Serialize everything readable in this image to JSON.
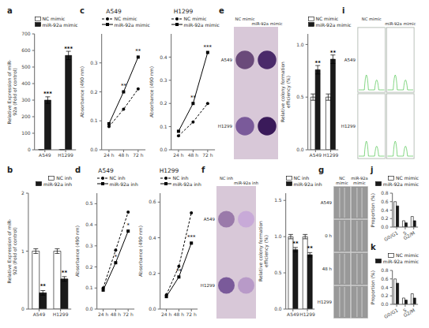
{
  "chart_data": [
    {
      "type": "bar",
      "label": "a",
      "ylabel": "Relative Expression of miR-\n92a (Fold of control)",
      "categories": [
        "A549",
        "H1299"
      ],
      "series": [
        {
          "name": "NC mimic",
          "color": "#ffffff",
          "values": [
            1.0,
            1.0
          ],
          "errors": [
            0.05,
            0.05
          ]
        },
        {
          "name": "miR-92a mimic",
          "color": "#1a1a1a",
          "values": [
            300,
            570
          ],
          "errors": [
            20,
            25
          ]
        }
      ],
      "ylim": [
        0,
        700
      ],
      "yticks": [
        0,
        100,
        200,
        300,
        400,
        500,
        600,
        700
      ],
      "legend": "upper left",
      "annotations": [
        {
          "text": "***",
          "x": "A549",
          "series": "miR-92a mimic"
        },
        {
          "text": "***",
          "x": "H1299",
          "series": "miR-92a mimic"
        }
      ]
    },
    {
      "type": "line",
      "label": "c",
      "title": "A549",
      "ylabel": "Absorbance (490 nm)",
      "x": [
        24,
        48,
        72
      ],
      "series": [
        {
          "name": "NC mimic",
          "color": "#000000",
          "marker": "circle",
          "line_style": "dashed",
          "values": [
            0.08,
            0.14,
            0.21
          ]
        },
        {
          "name": "miR-92a mimic",
          "color": "#000000",
          "marker": "square",
          "line_style": "solid",
          "values": [
            0.09,
            0.2,
            0.32
          ]
        }
      ],
      "xlim": [
        12,
        84
      ],
      "xticks": [
        {
          "value": 24,
          "label": "24 h"
        },
        {
          "value": 48,
          "label": "48 h"
        },
        {
          "value": 72,
          "label": "72 h"
        }
      ],
      "ylim": [
        0.0,
        0.4
      ],
      "yticks": [
        {
          "value": 0,
          "label": "0.0"
        },
        0.1,
        0.2,
        0.3
      ],
      "legend": "upper left",
      "annotations": [
        {
          "text": "**",
          "x": 48,
          "series": "miR-92a mimic"
        },
        {
          "text": "**",
          "x": 72,
          "series": "miR-92a mimic"
        }
      ]
    },
    {
      "type": "line",
      "title": "H1299",
      "ylabel": "Absorbance (490 nm)",
      "x": [
        24,
        48,
        72
      ],
      "series": [
        {
          "name": "NC mimic",
          "color": "#000000",
          "marker": "circle",
          "line_style": "dashed",
          "values": [
            0.06,
            0.12,
            0.2
          ]
        },
        {
          "name": "miR-92a mimic",
          "color": "#000000",
          "marker": "square",
          "line_style": "solid",
          "values": [
            0.08,
            0.2,
            0.42
          ]
        }
      ],
      "xlim": [
        12,
        84
      ],
      "xticks": [
        {
          "value": 24,
          "label": "24 h"
        },
        {
          "value": 48,
          "label": "48 h"
        },
        {
          "value": 72,
          "label": "72 h"
        }
      ],
      "ylim": [
        0.0,
        0.5
      ],
      "yticks": [
        {
          "value": 0,
          "label": "0.0"
        },
        0.1,
        0.2,
        0.3,
        0.4
      ],
      "legend": "upper left",
      "annotations": [
        {
          "text": "**",
          "x": 48,
          "series": "miR-92a mimic"
        },
        {
          "text": "***",
          "x": 72,
          "series": "miR-92a mimic"
        }
      ]
    },
    {
      "type": "image",
      "label": "e",
      "categories": [
        "NC mimic",
        "miR-92a mimic"
      ],
      "annotations": [
        "A549",
        "H1299"
      ],
      "colors": [
        "#6a4a7a",
        "#4a2a6a",
        "#7a5a9a",
        "#3a1a5a"
      ]
    },
    {
      "type": "bar",
      "ylabel": "Relative colony formation\nefficiency (%)",
      "categories": [
        "A549",
        "H1299"
      ],
      "series": [
        {
          "name": "NC mimic",
          "color": "#ffffff",
          "values": [
            0.5,
            0.5
          ],
          "errors": [
            0.03,
            0.03
          ]
        },
        {
          "name": "miR-92a mimic",
          "color": "#1a1a1a",
          "values": [
            0.76,
            0.86
          ],
          "errors": [
            0.04,
            0.04
          ]
        }
      ],
      "ylim": [
        0.0,
        1.1
      ],
      "yticks": [
        {
          "value": 0,
          "label": "0.0"
        },
        0.5,
        {
          "value": 1,
          "label": "1.0"
        }
      ],
      "legend": "upper left",
      "annotations": [
        {
          "text": "**",
          "x": "A549",
          "series": "miR-92a mimic"
        },
        {
          "text": "**",
          "x": "H1299",
          "series": "miR-92a mimic"
        }
      ]
    },
    {
      "type": "image",
      "label": "i",
      "categories": [
        "NC mimic",
        "miR-92a mimic"
      ],
      "annotations": [
        "A549",
        "H1299"
      ],
      "color": "#00aa00"
    },
    {
      "type": "bar",
      "label": "b",
      "ylabel": "Relative Expression of miR-\n92a (Fold of control)",
      "categories": [
        "A549",
        "H1299"
      ],
      "series": [
        {
          "name": "NC inh",
          "color": "#ffffff",
          "values": [
            1.0,
            1.0
          ],
          "errors": [
            0.04,
            0.04
          ]
        },
        {
          "name": "miR-92a inh",
          "color": "#1a1a1a",
          "values": [
            0.28,
            0.52
          ],
          "errors": [
            0.04,
            0.04
          ]
        }
      ],
      "ylim": [
        0,
        2
      ],
      "yticks": [
        0,
        1,
        2
      ],
      "legend": "upper right",
      "annotations": [
        {
          "text": "**",
          "x": "A549",
          "series": "miR-92a inh"
        },
        {
          "text": "**",
          "x": "H1299",
          "series": "miR-92a inh"
        }
      ]
    },
    {
      "type": "line",
      "label": "d",
      "title": "A549",
      "ylabel": "Absorbance (490 nm)",
      "x": [
        24,
        48,
        72
      ],
      "series": [
        {
          "name": "NC inh",
          "color": "#000000",
          "marker": "circle",
          "line_style": "dashed",
          "values": [
            0.1,
            0.28,
            0.46
          ]
        },
        {
          "name": "miR-92a inh",
          "color": "#000000",
          "marker": "square",
          "line_style": "solid",
          "values": [
            0.09,
            0.22,
            0.37
          ]
        }
      ],
      "xlim": [
        12,
        84
      ],
      "xticks": [
        {
          "value": 24,
          "label": "24 h"
        },
        {
          "value": 48,
          "label": "48 h"
        },
        {
          "value": 72,
          "label": "72 h"
        }
      ],
      "ylim": [
        0.0,
        0.55
      ],
      "yticks": [
        {
          "value": 0,
          "label": "0.0"
        },
        0.1,
        0.2,
        0.3,
        0.4,
        0.5
      ],
      "legend": "upper left",
      "annotations": [
        {
          "text": "*",
          "x": 48,
          "series": "miR-92a inh"
        },
        {
          "text": "*",
          "x": 72,
          "series": "miR-92a inh"
        }
      ]
    },
    {
      "type": "line",
      "title": "H1299",
      "ylabel": "Absorbance (490 nm)",
      "x": [
        24,
        48,
        72
      ],
      "series": [
        {
          "name": "NC inh",
          "color": "#000000",
          "marker": "circle",
          "line_style": "dashed",
          "values": [
            0.08,
            0.24,
            0.54
          ]
        },
        {
          "name": "miR-92a inh",
          "color": "#000000",
          "marker": "square",
          "line_style": "solid",
          "values": [
            0.07,
            0.18,
            0.37
          ]
        }
      ],
      "xlim": [
        12,
        84
      ],
      "xticks": [
        {
          "value": 24,
          "label": "24 h"
        },
        {
          "value": 48,
          "label": "48 h"
        },
        {
          "value": 72,
          "label": "72 h"
        }
      ],
      "ylim": [
        0.0,
        0.65
      ],
      "yticks": [
        {
          "value": 0,
          "label": "0.0"
        },
        0.2,
        0.4,
        0.6
      ],
      "legend": "upper left",
      "annotations": [
        {
          "text": "**",
          "x": 48,
          "series": "miR-92a inh"
        },
        {
          "text": "***",
          "x": 72,
          "series": "miR-92a inh"
        }
      ]
    },
    {
      "type": "image",
      "label": "f",
      "categories": [
        "NC inh",
        "miR-92a inh"
      ],
      "annotations": [
        "A549",
        "H1299"
      ],
      "colors": [
        "#9a7aaa",
        "#c8aad8",
        "#7a5a9a",
        "#b89ac8"
      ]
    },
    {
      "type": "bar",
      "ylabel": "Relative colony formation\nefficiency (%)",
      "categories": [
        "A549",
        "H1299"
      ],
      "series": [
        {
          "name": "NC inh",
          "color": "#ffffff",
          "values": [
            1.0,
            1.0
          ],
          "errors": [
            0.03,
            0.03
          ]
        },
        {
          "name": "miR-92a inh",
          "color": "#1a1a1a",
          "values": [
            0.82,
            0.75
          ],
          "errors": [
            0.03,
            0.03
          ]
        }
      ],
      "ylim": [
        0.0,
        1.6
      ],
      "yticks": [
        {
          "value": 0,
          "label": "0.0"
        },
        0.5,
        {
          "value": 1,
          "label": "1.0"
        },
        1.5
      ],
      "legend": "upper left",
      "annotations": [
        {
          "text": "**",
          "x": "A549",
          "series": "miR-92a inh"
        },
        {
          "text": "**",
          "x": "H1299",
          "series": "miR-92a inh"
        }
      ]
    },
    {
      "type": "image",
      "label": "g",
      "categories": [
        "NC\nmimic",
        "miR-92a\nmimic"
      ],
      "annotations": [
        "A549",
        "0 h",
        "48 h",
        "H1299"
      ],
      "color": "#999999"
    },
    {
      "type": "bar",
      "label": "j",
      "ylabel": "Proportion (%)",
      "categories": [
        "G0/G1",
        "S",
        "G2/M"
      ],
      "series": [
        {
          "name": "NC mimic",
          "color": "#ffffff",
          "values": [
            0.6,
            0.15,
            0.25
          ]
        },
        {
          "name": "miR-92a mimic",
          "color": "#1a1a1a",
          "values": [
            0.5,
            0.1,
            0.15
          ]
        }
      ],
      "ylim": [
        0,
        0.8
      ],
      "yticks": [
        {
          "value": 0,
          "label": "0.0"
        },
        0.2,
        0.4,
        0.6,
        0.8
      ],
      "legend": "upper right"
    },
    {
      "type": "bar",
      "label": "k",
      "ylabel": "Proportion (%)",
      "categories": [
        "G0/G1",
        "S",
        "G2/M"
      ],
      "series": [
        {
          "name": "NC mimic",
          "color": "#ffffff",
          "values": [
            0.6,
            0.15,
            0.25
          ]
        },
        {
          "name": "miR-92a mimic",
          "color": "#1a1a1a",
          "values": [
            0.5,
            0.1,
            0.15
          ]
        }
      ],
      "ylim": [
        0,
        0.8
      ],
      "yticks": [
        {
          "value": 0,
          "label": "0.0"
        },
        0.2,
        0.4,
        0.6,
        0.8
      ],
      "legend": "upper right"
    }
  ]
}
